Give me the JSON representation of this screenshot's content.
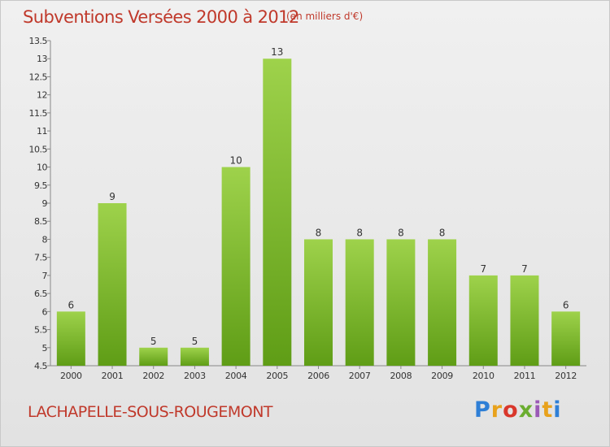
{
  "header": {
    "title": "Subventions Versées 2000 à 2012",
    "subtitle": "(en milliers d'€)"
  },
  "footer": {
    "commune": "LACHAPELLE-SOUS-ROUGEMONT",
    "logo_text": "Proxiti",
    "logo_letter_colors": [
      "#2e7fd6",
      "#e8a21c",
      "#d9372b",
      "#6aad2f",
      "#9b59b6",
      "#e8a21c",
      "#2e7fd6"
    ]
  },
  "chart_data": {
    "type": "bar",
    "title": "Subventions Versées 2000 à 2012",
    "subtitle": "(en milliers d'€)",
    "categories": [
      "2000",
      "2001",
      "2002",
      "2003",
      "2004",
      "2005",
      "2006",
      "2007",
      "2008",
      "2009",
      "2010",
      "2011",
      "2012"
    ],
    "values": [
      6,
      9,
      5,
      5,
      10,
      13,
      8,
      8,
      8,
      8,
      7,
      7,
      6
    ],
    "data_labels": [
      "6",
      "9",
      "5",
      "5",
      "10",
      "13",
      "8",
      "8",
      "8",
      "8",
      "7",
      "7",
      "6"
    ],
    "ylim": [
      4.5,
      13.5
    ],
    "yticks": [
      "4.5",
      "5",
      "5.5",
      "6",
      "6.5",
      "7",
      "7.5",
      "8",
      "8.5",
      "9",
      "9.5",
      "10",
      "10.5",
      "11",
      "11.5",
      "12",
      "12.5",
      "13",
      "13.5"
    ],
    "bar_color_top": "#9ed24b",
    "bar_color_bottom": "#5f9d16",
    "grid": false,
    "legend": "none"
  }
}
